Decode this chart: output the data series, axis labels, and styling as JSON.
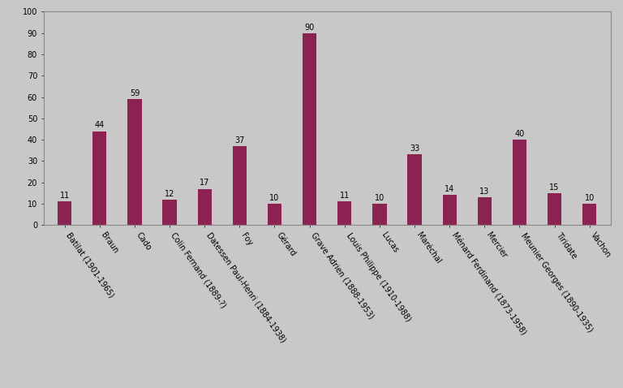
{
  "categories": [
    "Batilat (1901-1965)",
    "Braun",
    "Cado",
    "Colin Fernand (1889-?)",
    "Datessen Paul-Henri (1884-1938)",
    "Foy",
    "Gérard",
    "Grave Adrien (1888-1953)",
    "Louis Philippe (1910-1988)",
    "Lucas",
    "Maréchal",
    "Ménard Ferdinand (1873-1958)",
    "Mercier",
    "Meunier Georges (1890-1935)",
    "Tiridate",
    "Vachon"
  ],
  "values": [
    11,
    44,
    59,
    12,
    17,
    37,
    10,
    90,
    11,
    10,
    33,
    14,
    13,
    40,
    15,
    10
  ],
  "bar_color": "#8B2252",
  "background_color": "#C8C8C8",
  "plot_bg_color": "#C8C8C8",
  "ylim": [
    0,
    100
  ],
  "yticks": [
    0,
    10,
    20,
    30,
    40,
    50,
    60,
    70,
    80,
    90,
    100
  ],
  "value_fontsize": 7,
  "tick_label_fontsize": 7,
  "bar_width": 0.4
}
